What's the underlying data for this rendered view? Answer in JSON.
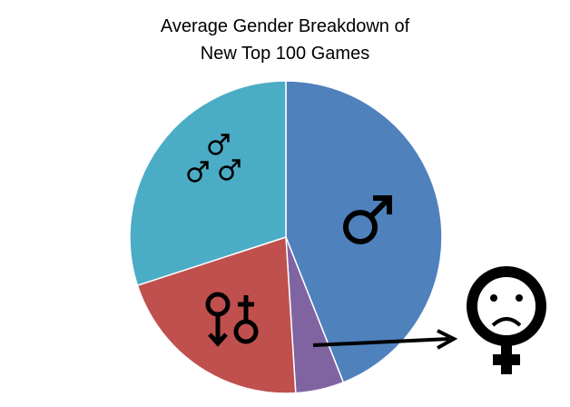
{
  "chart_data": {
    "type": "pie",
    "title": "Average Gender Breakdown of New Top 100 Games",
    "values": [
      44,
      5,
      21,
      30
    ],
    "colors": [
      "#4f81bd",
      "#8064a2",
      "#c0504d",
      "#4bacc6"
    ]
  }
}
